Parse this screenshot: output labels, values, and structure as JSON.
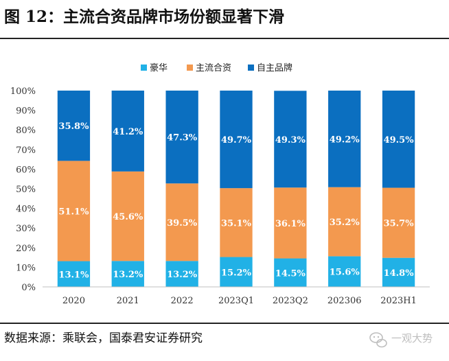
{
  "figure": {
    "title": "图 12：主流合资品牌市场份额显著下滑",
    "source": "数据来源：乘联会，国泰君安证券研究"
  },
  "chart_data": {
    "type": "bar",
    "stacked": true,
    "title": "",
    "xlabel": "",
    "ylabel": "",
    "ylim": [
      0,
      100
    ],
    "ytick_labels": [
      "0%",
      "10%",
      "20%",
      "30%",
      "40%",
      "50%",
      "60%",
      "70%",
      "80%",
      "90%",
      "100%"
    ],
    "categories": [
      "2020",
      "2021",
      "2022",
      "2023Q1",
      "2023Q2",
      "202306",
      "2023H1"
    ],
    "legend_position": "top-center",
    "grid": false,
    "series": [
      {
        "name": "豪华",
        "color": "#21b1e6",
        "values": [
          13.1,
          13.2,
          13.2,
          15.2,
          14.5,
          15.6,
          14.8
        ],
        "labels": [
          "13.1%",
          "13.2%",
          "13.2%",
          "15.2%",
          "14.5%",
          "15.6%",
          "14.8%"
        ]
      },
      {
        "name": "主流合资",
        "color": "#f3994f",
        "values": [
          51.1,
          45.6,
          39.5,
          35.1,
          36.1,
          35.2,
          35.7
        ],
        "labels": [
          "51.1%",
          "45.6%",
          "39.5%",
          "35.1%",
          "36.1%",
          "35.2%",
          "35.7%"
        ]
      },
      {
        "name": "自主品牌",
        "color": "#0b6fc0",
        "values": [
          35.8,
          41.2,
          47.3,
          49.7,
          49.3,
          49.2,
          49.5
        ],
        "labels": [
          "35.8%",
          "41.2%",
          "47.3%",
          "49.7%",
          "49.3%",
          "49.2%",
          "49.5%"
        ]
      }
    ]
  },
  "watermark": {
    "icon": "weixin-icon",
    "text": "一观大势",
    "colors": {
      "ink": "#8a8a8a"
    }
  }
}
